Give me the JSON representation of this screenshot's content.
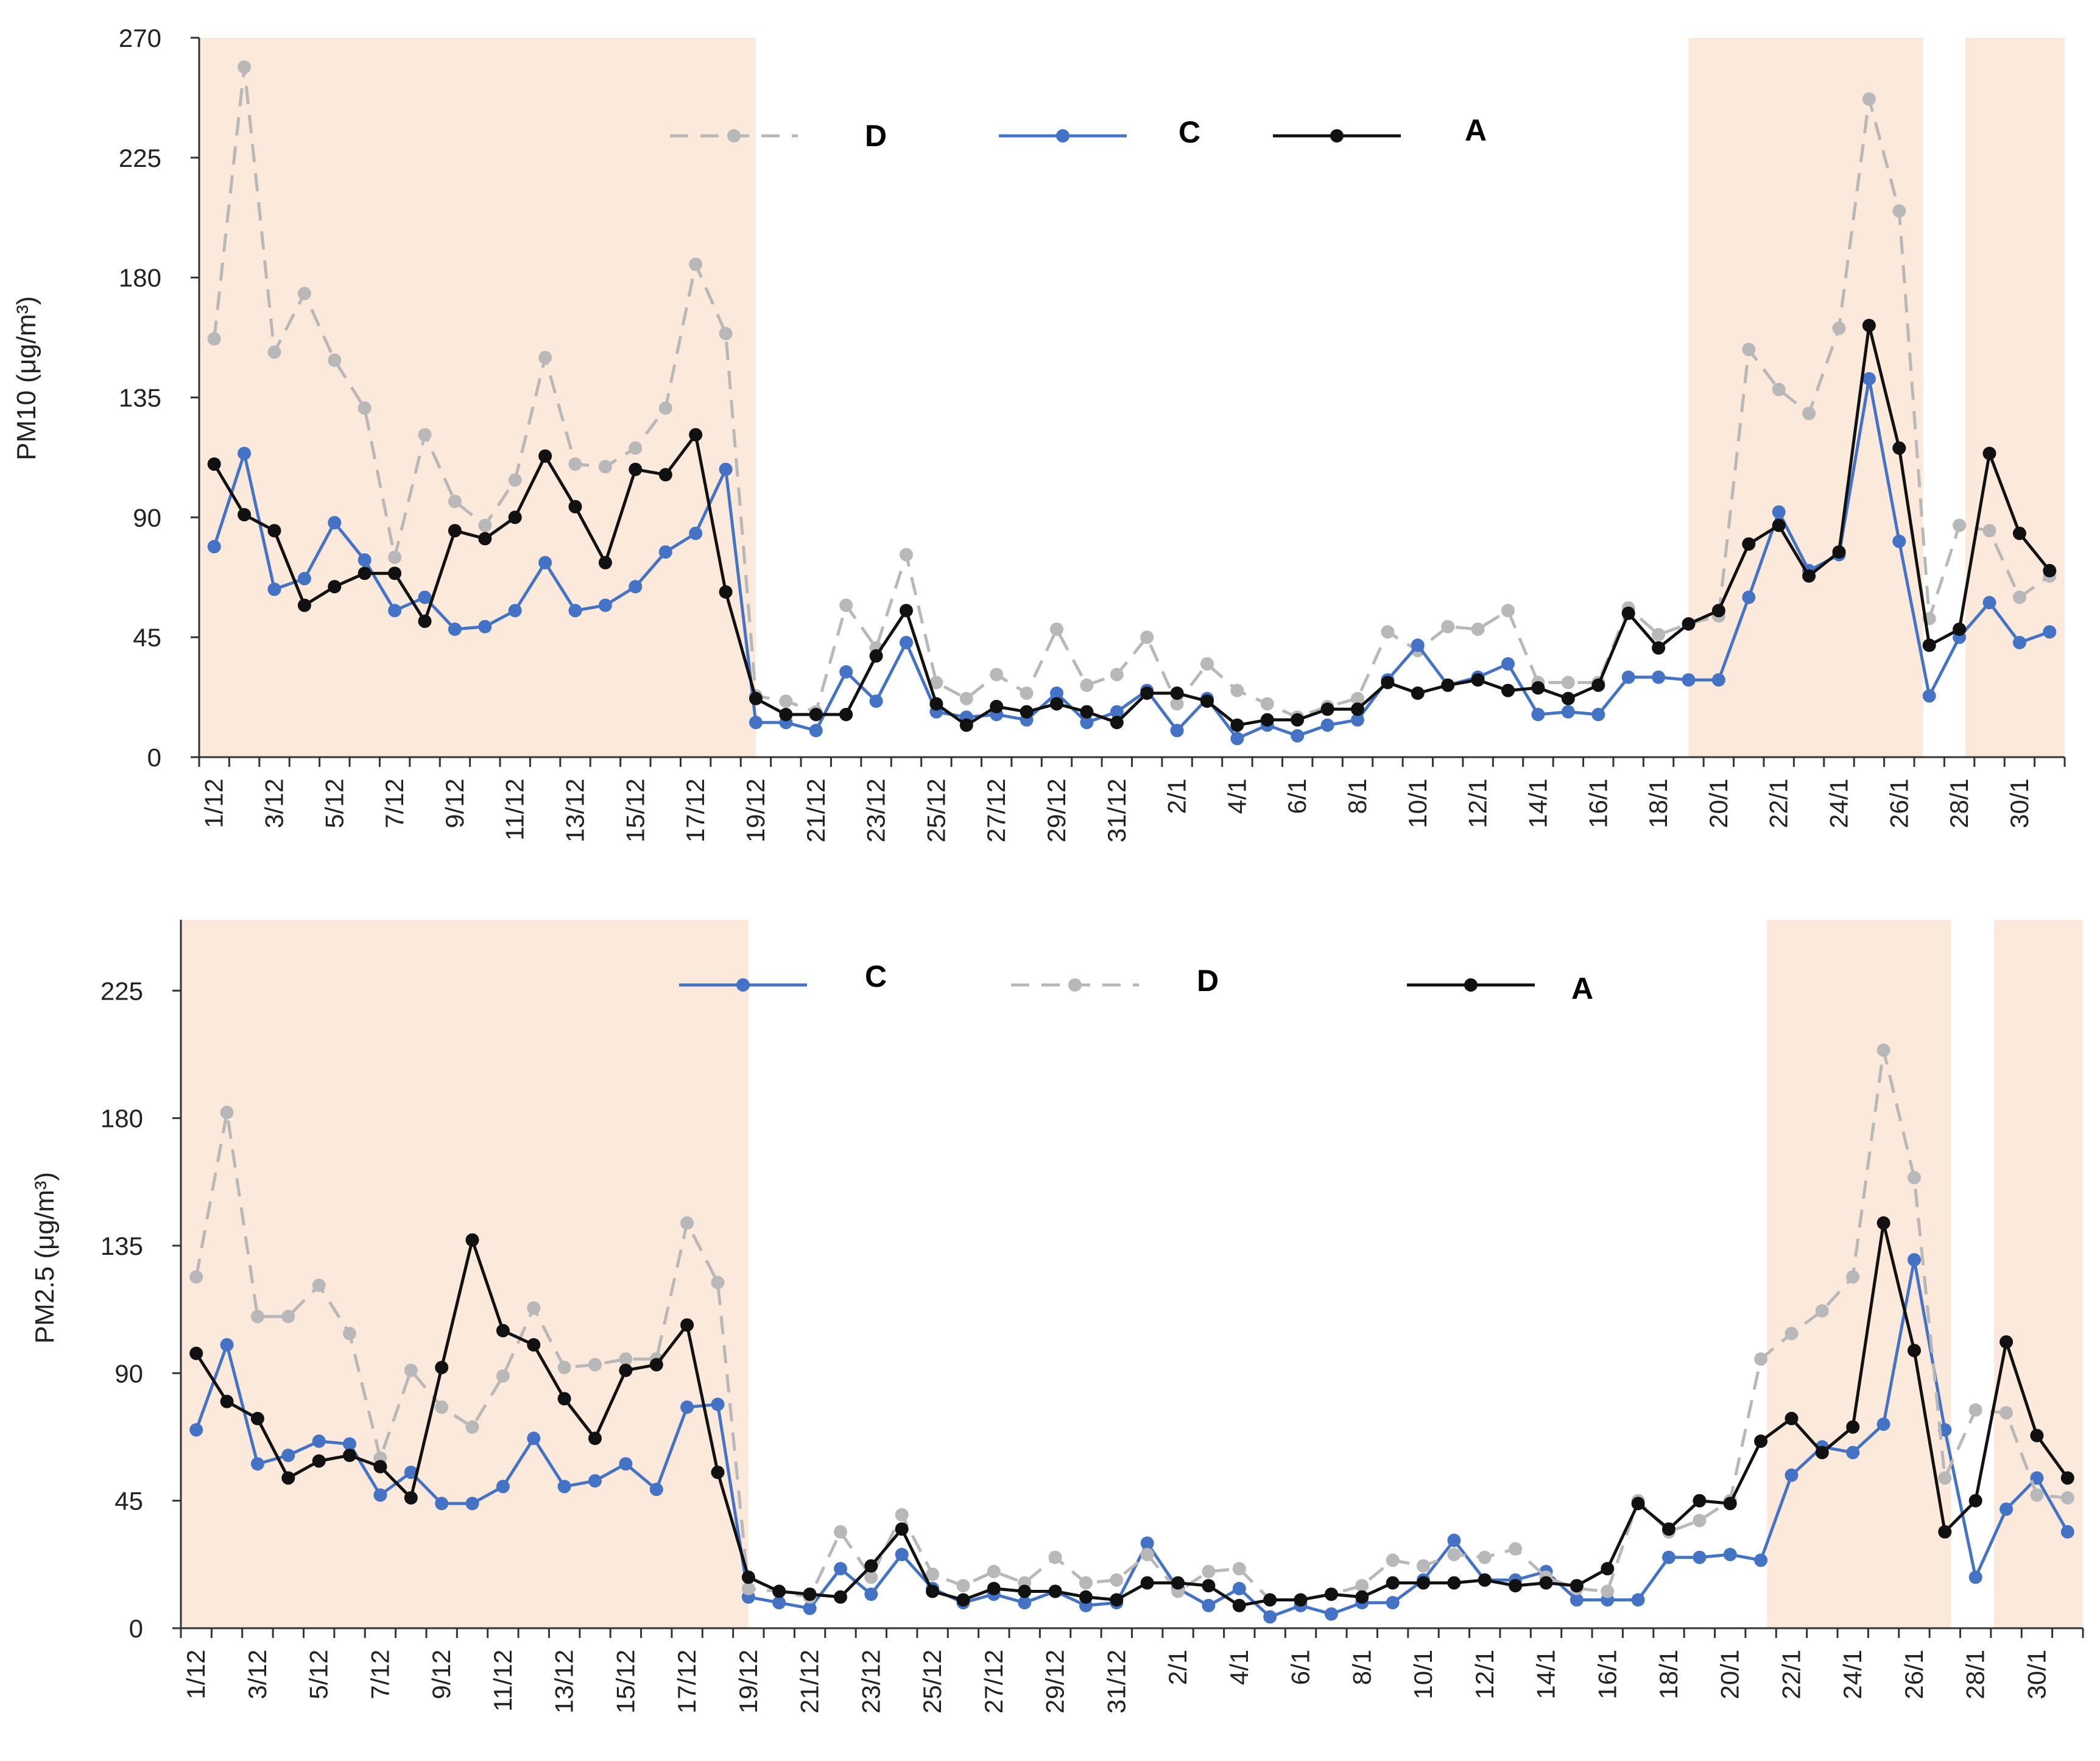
{
  "colors": {
    "shade": "#fbe9dc",
    "series_D": "#b8b8b8",
    "series_C": "#4472c4",
    "series_A": "#111111",
    "axis": "#333333"
  },
  "chart_data": [
    {
      "type": "line",
      "ylabel": "PM10 (μg/m³)",
      "ylim": [
        0,
        270
      ],
      "yticks": [
        0,
        45,
        90,
        135,
        180,
        225,
        270
      ],
      "x": [
        "1/12",
        "2/12",
        "3/12",
        "4/12",
        "5/12",
        "6/12",
        "7/12",
        "8/12",
        "9/12",
        "10/12",
        "11/12",
        "12/12",
        "13/12",
        "14/12",
        "15/12",
        "16/12",
        "17/12",
        "18/12",
        "19/12",
        "20/12",
        "21/12",
        "22/12",
        "23/12",
        "24/12",
        "25/12",
        "26/12",
        "27/12",
        "28/12",
        "29/12",
        "30/12",
        "31/12",
        "1/1",
        "2/1",
        "3/1",
        "4/1",
        "5/1",
        "6/1",
        "7/1",
        "8/1",
        "9/1",
        "10/1",
        "11/1",
        "12/1",
        "13/1",
        "14/1",
        "15/1",
        "16/1",
        "17/1",
        "18/1",
        "19/1",
        "20/1",
        "21/1",
        "22/1",
        "23/1",
        "24/1",
        "25/1",
        "26/1",
        "27/1",
        "28/1",
        "29/1",
        "30/1",
        "31/1"
      ],
      "xtick_labels": [
        "1/12",
        "3/12",
        "5/12",
        "7/12",
        "9/12",
        "11/12",
        "13/12",
        "15/12",
        "17/12",
        "19/12",
        "21/12",
        "23/12",
        "25/12",
        "27/12",
        "29/12",
        "31/12",
        "2/1",
        "4/1",
        "6/1",
        "8/1",
        "10/1",
        "12/1",
        "14/1",
        "16/1",
        "18/1",
        "20/1",
        "22/1",
        "24/1",
        "26/1",
        "28/1",
        "30/1"
      ],
      "shaded_ranges": [
        [
          0,
          18.5
        ],
        [
          49.5,
          57.3
        ],
        [
          58.7,
          62
        ]
      ],
      "legend_order": [
        "D",
        "C",
        "A"
      ],
      "series": [
        {
          "name": "D",
          "style": "dashed",
          "values": [
            157,
            259,
            152,
            174,
            149,
            131,
            75,
            121,
            96,
            87,
            104,
            150,
            110,
            109,
            116,
            131,
            185,
            159,
            23,
            21,
            17,
            57,
            41,
            76,
            28,
            22,
            31,
            24,
            48,
            27,
            31,
            45,
            20,
            35,
            25,
            20,
            15,
            19,
            22,
            47,
            40,
            49,
            48,
            55,
            28,
            28,
            28,
            56,
            46,
            50,
            53,
            153,
            138,
            129,
            161,
            247,
            205,
            52,
            87,
            85,
            60,
            68
          ]
        },
        {
          "name": "C",
          "style": "solid",
          "values": [
            79,
            114,
            63,
            67,
            88,
            74,
            55,
            60,
            48,
            49,
            55,
            73,
            55,
            57,
            64,
            77,
            84,
            108,
            13,
            13,
            10,
            32,
            21,
            43,
            17,
            15,
            16,
            14,
            24,
            13,
            17,
            25,
            10,
            22,
            7,
            12,
            8,
            12,
            14,
            29,
            42,
            27,
            30,
            35,
            16,
            17,
            16,
            30,
            30,
            29,
            29,
            60,
            92,
            70,
            76,
            142,
            81,
            23,
            45,
            58,
            43,
            47
          ]
        },
        {
          "name": "A",
          "style": "solid",
          "values": [
            110,
            91,
            85,
            57,
            64,
            69,
            69,
            51,
            85,
            82,
            90,
            113,
            94,
            73,
            108,
            106,
            121,
            62,
            22,
            16,
            16,
            16,
            38,
            55,
            20,
            12,
            19,
            17,
            20,
            17,
            13,
            24,
            24,
            21,
            12,
            14,
            14,
            18,
            18,
            28,
            24,
            27,
            29,
            25,
            26,
            22,
            27,
            54,
            41,
            50,
            55,
            80,
            87,
            68,
            77,
            162,
            116,
            42,
            48,
            114,
            84,
            70
          ]
        }
      ]
    },
    {
      "type": "line",
      "ylabel": "PM2.5  (μg/m³)",
      "ylim": [
        0,
        250
      ],
      "yticks": [
        0,
        45,
        90,
        135,
        180,
        225
      ],
      "x": [
        "1/12",
        "2/12",
        "3/12",
        "4/12",
        "5/12",
        "6/12",
        "7/12",
        "8/12",
        "9/12",
        "10/12",
        "11/12",
        "12/12",
        "13/12",
        "14/12",
        "15/12",
        "16/12",
        "17/12",
        "18/12",
        "19/12",
        "20/12",
        "21/12",
        "22/12",
        "23/12",
        "24/12",
        "25/12",
        "26/12",
        "27/12",
        "28/12",
        "29/12",
        "30/12",
        "31/12",
        "1/1",
        "2/1",
        "3/1",
        "4/1",
        "5/1",
        "6/1",
        "7/1",
        "8/1",
        "9/1",
        "10/1",
        "11/1",
        "12/1",
        "13/1",
        "14/1",
        "15/1",
        "16/1",
        "17/1",
        "18/1",
        "19/1",
        "20/1",
        "21/1",
        "22/1",
        "23/1",
        "24/1",
        "25/1",
        "26/1",
        "27/1",
        "28/1",
        "29/1",
        "30/1",
        "31/1"
      ],
      "xtick_labels": [
        "1/12",
        "3/12",
        "5/12",
        "7/12",
        "9/12",
        "11/12",
        "13/12",
        "15/12",
        "17/12",
        "19/12",
        "21/12",
        "23/12",
        "25/12",
        "27/12",
        "29/12",
        "31/12",
        "2/1",
        "4/1",
        "6/1",
        "8/1",
        "10/1",
        "12/1",
        "14/1",
        "16/1",
        "18/1",
        "20/1",
        "22/1",
        "24/1",
        "26/1",
        "28/1",
        "30/1"
      ],
      "shaded_ranges": [
        [
          0,
          18.5
        ],
        [
          51.7,
          57.7
        ],
        [
          59.1,
          62
        ]
      ],
      "legend_order": [
        "C",
        "D",
        "A"
      ],
      "series": [
        {
          "name": "C",
          "style": "solid",
          "values": [
            70,
            100,
            58,
            61,
            66,
            65,
            47,
            55,
            44,
            44,
            50,
            67,
            50,
            52,
            58,
            49,
            78,
            79,
            11,
            9,
            7,
            21,
            12,
            26,
            14,
            9,
            12,
            9,
            13,
            8,
            9,
            30,
            14,
            8,
            14,
            4,
            8,
            5,
            9,
            9,
            17,
            31,
            17,
            17,
            20,
            10,
            10,
            10,
            25,
            25,
            26,
            24,
            54,
            64,
            62,
            72,
            130,
            70,
            18,
            42,
            53,
            34
          ]
        },
        {
          "name": "D",
          "style": "dashed",
          "values": [
            124,
            182,
            110,
            110,
            121,
            104,
            60,
            91,
            78,
            71,
            89,
            113,
            92,
            93,
            95,
            95,
            143,
            122,
            14,
            13,
            11,
            34,
            18,
            40,
            19,
            15,
            20,
            16,
            25,
            16,
            17,
            26,
            13,
            20,
            21,
            10,
            10,
            12,
            15,
            24,
            22,
            26,
            25,
            28,
            18,
            14,
            13,
            45,
            34,
            38,
            45,
            95,
            104,
            112,
            124,
            204,
            159,
            53,
            77,
            76,
            47,
            46
          ]
        },
        {
          "name": "A",
          "style": "solid",
          "values": [
            97,
            80,
            74,
            53,
            59,
            61,
            57,
            46,
            92,
            137,
            105,
            100,
            81,
            67,
            91,
            93,
            107,
            55,
            18,
            13,
            12,
            11,
            22,
            35,
            13,
            10,
            14,
            13,
            13,
            11,
            10,
            16,
            16,
            15,
            8,
            10,
            10,
            12,
            11,
            16,
            16,
            16,
            17,
            15,
            16,
            15,
            21,
            44,
            35,
            45,
            44,
            66,
            74,
            62,
            71,
            143,
            98,
            34,
            45,
            101,
            68,
            53
          ]
        }
      ]
    }
  ]
}
